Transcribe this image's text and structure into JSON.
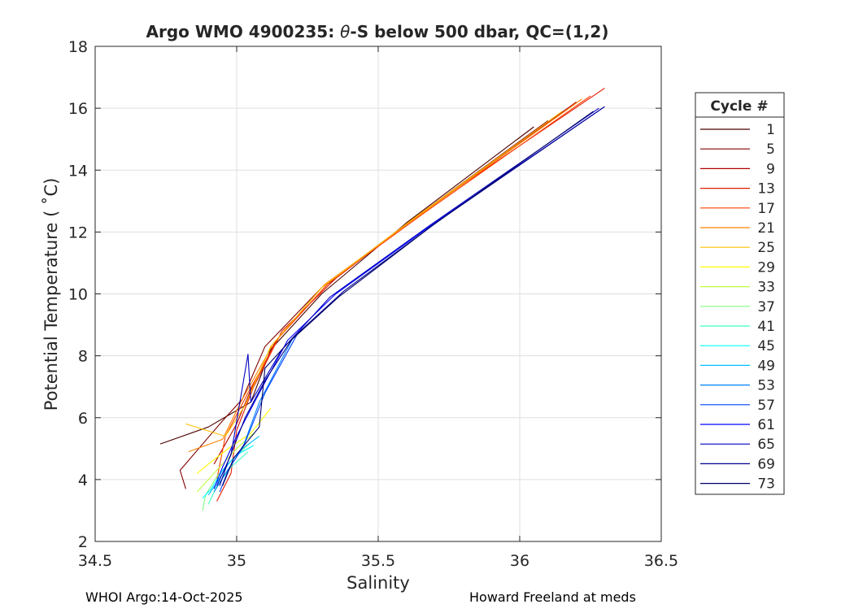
{
  "footer": {
    "left": "WHOI Argo:14-Oct-2025",
    "right": "Howard Freeland at meds"
  },
  "chart_data": {
    "type": "line",
    "title_prefix": "Argo WMO 4900235: ",
    "title_theta": "θ",
    "title_suffix": "-S below 500 dbar,  QC=(1,2)",
    "xlabel": "Salinity",
    "ylabel": "Potential Temperature ( ˚C)",
    "xlim": [
      34.5,
      36.5
    ],
    "ylim": [
      2,
      18
    ],
    "xticks": [
      34.5,
      35,
      35.5,
      36,
      36.5
    ],
    "xtick_labels": [
      "34.5",
      "35",
      "35.5",
      "36",
      "36.5"
    ],
    "yticks": [
      2,
      4,
      6,
      8,
      10,
      12,
      14,
      16,
      18
    ],
    "ytick_labels": [
      "2",
      "4",
      "6",
      "8",
      "10",
      "12",
      "14",
      "16",
      "18"
    ],
    "grid": true,
    "legend": {
      "title": "Cycle #",
      "placement": "right-outside",
      "entries": [
        {
          "label": "1",
          "color": "#4a0000"
        },
        {
          "label": "5",
          "color": "#800000"
        },
        {
          "label": "9",
          "color": "#b00000"
        },
        {
          "label": "13",
          "color": "#e01a00"
        },
        {
          "label": "17",
          "color": "#ff4000"
        },
        {
          "label": "21",
          "color": "#ff8000"
        },
        {
          "label": "25",
          "color": "#ffbf00"
        },
        {
          "label": "29",
          "color": "#ffff00"
        },
        {
          "label": "33",
          "color": "#bfff40"
        },
        {
          "label": "37",
          "color": "#80ff80"
        },
        {
          "label": "41",
          "color": "#40ffbf"
        },
        {
          "label": "45",
          "color": "#00ffff"
        },
        {
          "label": "49",
          "color": "#00bfff"
        },
        {
          "label": "53",
          "color": "#0080ff"
        },
        {
          "label": "57",
          "color": "#0040ff"
        },
        {
          "label": "61",
          "color": "#0000ff"
        },
        {
          "label": "65",
          "color": "#0000c0"
        },
        {
          "label": "69",
          "color": "#000090"
        },
        {
          "label": "73",
          "color": "#000066"
        }
      ]
    },
    "series": [
      {
        "color": "#4a0000",
        "x": [
          36.05,
          35.6,
          35.3,
          35.12,
          35.05,
          34.9,
          34.73
        ],
        "y": [
          15.4,
          12.3,
          10.0,
          8.2,
          6.5,
          5.7,
          5.15
        ]
      },
      {
        "color": "#800000",
        "x": [
          36.1,
          35.62,
          35.3,
          35.1,
          35.02,
          34.95,
          34.8,
          34.82
        ],
        "y": [
          15.6,
          12.4,
          10.2,
          8.3,
          6.6,
          5.9,
          4.3,
          3.7
        ]
      },
      {
        "color": "#b00000",
        "x": [
          36.2,
          35.65,
          35.32,
          35.14,
          35.05,
          35.0,
          34.92
        ],
        "y": [
          16.2,
          12.6,
          10.3,
          8.5,
          6.9,
          5.8,
          4.5
        ]
      },
      {
        "color": "#e01a00",
        "x": [
          36.3,
          35.68,
          35.35,
          35.16,
          35.06,
          35.0,
          34.98,
          34.93
        ],
        "y": [
          16.65,
          12.8,
          10.5,
          8.8,
          7.0,
          5.6,
          4.2,
          3.3
        ]
      },
      {
        "color": "#ff4000",
        "x": [
          36.25,
          35.66,
          35.33,
          35.15,
          35.04,
          34.96,
          34.93
        ],
        "y": [
          16.4,
          12.6,
          10.4,
          8.6,
          6.8,
          5.4,
          4.0
        ]
      },
      {
        "color": "#ff8000",
        "x": [
          36.22,
          35.64,
          35.31,
          35.13,
          35.02,
          34.95,
          34.83
        ],
        "y": [
          16.3,
          12.5,
          10.3,
          8.4,
          6.6,
          5.3,
          4.9
        ]
      },
      {
        "color": "#ffbf00",
        "x": [
          36.15,
          35.62,
          35.3,
          35.12,
          35.03,
          34.96,
          34.82
        ],
        "y": [
          15.9,
          12.4,
          10.2,
          8.3,
          6.4,
          5.4,
          5.8
        ]
      },
      {
        "color": "#ffff00",
        "x": [
          35.12,
          35.05,
          34.97,
          34.9,
          34.86
        ],
        "y": [
          6.3,
          5.5,
          5.0,
          4.5,
          4.2
        ]
      },
      {
        "color": "#bfff40",
        "x": [
          35.06,
          35.0,
          34.94,
          34.88,
          34.86
        ],
        "y": [
          5.5,
          5.0,
          4.4,
          3.8,
          3.6
        ]
      },
      {
        "color": "#80ff80",
        "x": [
          35.05,
          34.99,
          34.93,
          34.89,
          34.88
        ],
        "y": [
          5.2,
          4.7,
          4.1,
          3.5,
          3.0
        ]
      },
      {
        "color": "#40ffbf",
        "x": [
          35.04,
          34.98,
          34.93,
          34.9
        ],
        "y": [
          4.9,
          4.4,
          3.8,
          3.2
        ]
      },
      {
        "color": "#00ffff",
        "x": [
          35.06,
          35.0,
          34.95,
          34.91,
          34.88
        ],
        "y": [
          5.1,
          4.8,
          4.3,
          3.7,
          3.4
        ]
      },
      {
        "color": "#00bfff",
        "x": [
          35.08,
          35.02,
          34.97,
          34.93,
          34.9
        ],
        "y": [
          5.4,
          5.0,
          4.5,
          3.9,
          3.5
        ]
      },
      {
        "color": "#0080ff",
        "x": [
          35.2,
          35.08,
          35.02,
          34.96,
          34.92
        ],
        "y": [
          8.6,
          6.5,
          5.0,
          4.2,
          3.6
        ]
      },
      {
        "color": "#0040ff",
        "x": [
          35.22,
          35.1,
          35.03,
          34.97,
          34.94
        ],
        "y": [
          8.8,
          6.8,
          5.2,
          4.3,
          3.6
        ]
      },
      {
        "color": "#0000ff",
        "x": [
          36.3,
          35.7,
          35.35,
          35.18,
          35.08,
          35.0,
          34.95,
          34.92
        ],
        "y": [
          16.05,
          12.3,
          10.0,
          8.5,
          6.8,
          5.4,
          4.4,
          3.7
        ]
      },
      {
        "color": "#0000c0",
        "x": [
          36.28,
          35.68,
          35.33,
          35.16,
          35.05,
          35.04,
          34.98,
          34.93
        ],
        "y": [
          16.0,
          12.2,
          9.9,
          8.2,
          6.5,
          8.05,
          4.8,
          3.8
        ]
      },
      {
        "color": "#000090",
        "x": [
          36.3,
          35.72,
          35.38,
          35.2,
          35.1,
          35.03,
          34.97,
          34.94
        ],
        "y": [
          16.05,
          12.4,
          10.1,
          8.6,
          7.2,
          6.0,
          4.6,
          3.8
        ]
      },
      {
        "color": "#000066",
        "x": [
          36.26,
          35.69,
          35.36,
          35.18,
          35.1,
          35.08,
          34.99,
          34.95
        ],
        "y": [
          15.9,
          12.2,
          9.9,
          8.4,
          7.6,
          5.7,
          4.7,
          3.8
        ]
      }
    ]
  }
}
